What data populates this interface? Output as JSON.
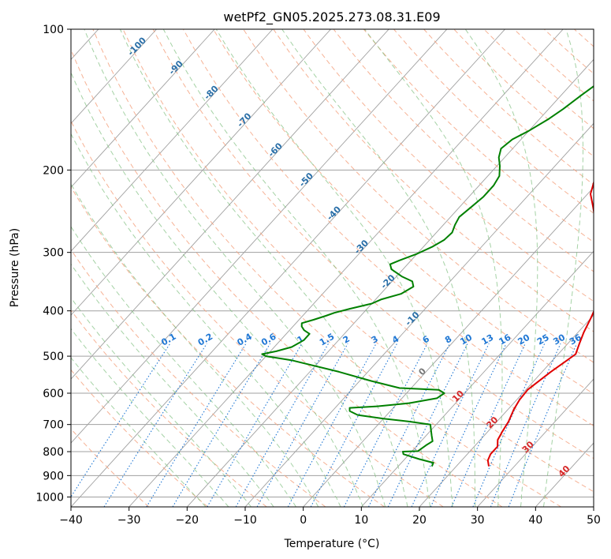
{
  "chart_data": {
    "type": "line",
    "title": "wetPf2_GN05.2025.273.08.31.E09",
    "xlabel": "Temperature (°C)",
    "ylabel": "Pressure (hPa)",
    "xlim": [
      -40,
      50
    ],
    "ylim": [
      1050,
      100
    ],
    "x_ticks": [
      -40,
      -30,
      -20,
      -10,
      0,
      10,
      20,
      30,
      40,
      50
    ],
    "x_tick_labels": [
      "−40",
      "−30",
      "−20",
      "−10",
      "0",
      "10",
      "20",
      "30",
      "40",
      "50"
    ],
    "y_ticks": [
      100,
      200,
      300,
      400,
      500,
      600,
      700,
      800,
      900,
      1000
    ],
    "y_tick_labels": [
      "100",
      "200",
      "300",
      "400",
      "500",
      "600",
      "700",
      "800",
      "900",
      "1000"
    ],
    "colors": {
      "temperature": "#e00000",
      "dewpoint": "#008000",
      "dry_adiabat": "#f4a582",
      "moist_adiabat": "#7fbf7f",
      "mixing_ratio": "#1f77d4",
      "isotherm": "#a0a0a0",
      "isobar": "#a0a0a0",
      "freezing_label": "#777777",
      "skew_label": "#2a6fa8",
      "hot_label": "#d62728"
    },
    "series": [
      {
        "name": "Temperature",
        "color": "#e00000",
        "points": [
          [
            25.6,
            860
          ],
          [
            24.5,
            835
          ],
          [
            24.0,
            810
          ],
          [
            24.0,
            780
          ],
          [
            23.0,
            755
          ],
          [
            22.5,
            725
          ],
          [
            22.0,
            690
          ],
          [
            21.0,
            650
          ],
          [
            20.5,
            620
          ],
          [
            20.3,
            590
          ],
          [
            21.0,
            560
          ],
          [
            21.5,
            540
          ],
          [
            22.5,
            510
          ],
          [
            23.0,
            495
          ],
          [
            22.0,
            470
          ],
          [
            21.0,
            445
          ],
          [
            20.0,
            415
          ],
          [
            19.0,
            390
          ],
          [
            17.0,
            360
          ],
          [
            15.0,
            340
          ],
          [
            13.0,
            320
          ],
          [
            11.0,
            300
          ],
          [
            8.5,
            280
          ],
          [
            6.0,
            260
          ],
          [
            3.0,
            240
          ],
          [
            0.5,
            225
          ],
          [
            -1.0,
            210
          ],
          [
            -1.8,
            200
          ],
          [
            -2.5,
            190
          ],
          [
            -3.0,
            180
          ],
          [
            -5.0,
            165
          ],
          [
            -7.0,
            150
          ],
          [
            -8.5,
            140
          ],
          [
            -10.0,
            130
          ],
          [
            -11.5,
            120
          ],
          [
            -13.5,
            110
          ],
          [
            -15.0,
            100
          ]
        ]
      },
      {
        "name": "Dewpoint",
        "color": "#008000",
        "points": [
          [
            15.8,
            860
          ],
          [
            15.5,
            845
          ],
          [
            12.5,
            830
          ],
          [
            9.0,
            810
          ],
          [
            8.5,
            800
          ],
          [
            11.0,
            798
          ],
          [
            11.5,
            775
          ],
          [
            12.0,
            760
          ],
          [
            11.0,
            740
          ],
          [
            10.0,
            720
          ],
          [
            9.0,
            700
          ],
          [
            5.0,
            690
          ],
          [
            0.0,
            680
          ],
          [
            -5.0,
            668
          ],
          [
            -7.0,
            655
          ],
          [
            -7.5,
            645
          ],
          [
            -3.0,
            640
          ],
          [
            2.0,
            630
          ],
          [
            6.0,
            615
          ],
          [
            6.5,
            600
          ],
          [
            5.0,
            590
          ],
          [
            -2.0,
            585
          ],
          [
            -8.0,
            565
          ],
          [
            -15.0,
            540
          ],
          [
            -25.0,
            510
          ],
          [
            -30.0,
            500
          ],
          [
            -31.0,
            495
          ],
          [
            -29.0,
            488
          ],
          [
            -27.0,
            478
          ],
          [
            -26.0,
            462
          ],
          [
            -26.0,
            448
          ],
          [
            -27.5,
            440
          ],
          [
            -28.5,
            432
          ],
          [
            -29.0,
            425
          ],
          [
            -27.5,
            418
          ],
          [
            -26.0,
            410
          ],
          [
            -25.0,
            404
          ],
          [
            -23.0,
            396
          ],
          [
            -20.0,
            386
          ],
          [
            -19.0,
            378
          ],
          [
            -16.5,
            368
          ],
          [
            -15.5,
            355
          ],
          [
            -16.5,
            346
          ],
          [
            -19.0,
            338
          ],
          [
            -22.0,
            326
          ],
          [
            -23.0,
            318
          ],
          [
            -22.0,
            312
          ],
          [
            -20.0,
            302
          ],
          [
            -18.5,
            292
          ],
          [
            -17.5,
            282
          ],
          [
            -17.3,
            272
          ],
          [
            -18.0,
            262
          ],
          [
            -18.5,
            252
          ],
          [
            -18.0,
            240
          ],
          [
            -17.5,
            228
          ],
          [
            -17.5,
            216
          ],
          [
            -18.0,
            206
          ],
          [
            -19.5,
            196
          ],
          [
            -21.0,
            188
          ],
          [
            -22.0,
            180
          ],
          [
            -21.5,
            172
          ],
          [
            -20.0,
            165
          ],
          [
            -18.5,
            156
          ],
          [
            -17.5,
            148
          ],
          [
            -16.5,
            138
          ],
          [
            -15.5,
            130
          ],
          [
            -15.0,
            126
          ],
          [
            -14.0,
            118
          ],
          [
            -14.5,
            112
          ],
          [
            -15.0,
            106
          ],
          [
            -15.5,
            100
          ]
        ]
      }
    ],
    "skew_labels": [
      "-100",
      "-90",
      "-80",
      "-70",
      "-60",
      "-50",
      "-40",
      "-30",
      "-20",
      "-10"
    ],
    "freezing_label": "0",
    "hot_labels": [
      "10",
      "20",
      "30",
      "40"
    ],
    "mixing_ratio_labels": [
      "0.1",
      "0.2",
      "0.4",
      "0.6",
      "1",
      "1.5",
      "2",
      "3",
      "4",
      "6",
      "8",
      "10",
      "13",
      "16",
      "20",
      "25",
      "30",
      "36"
    ]
  }
}
